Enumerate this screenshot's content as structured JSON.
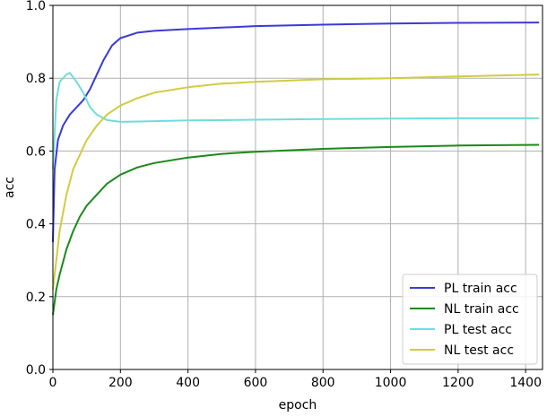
{
  "chart_data": {
    "type": "line",
    "xlabel": "epoch",
    "ylabel": "acc",
    "xlim": [
      0,
      1450
    ],
    "ylim": [
      0.0,
      1.0
    ],
    "xticks": [
      0,
      200,
      400,
      600,
      800,
      1000,
      1200,
      1400
    ],
    "xtick_labels": [
      "0",
      "200",
      "400",
      "600",
      "800",
      "1000",
      "1200",
      "1400"
    ],
    "yticks": [
      0.0,
      0.2,
      0.4,
      0.6,
      0.8,
      1.0
    ],
    "ytick_labels": [
      "0.0",
      "0.2",
      "0.4",
      "0.6",
      "0.8",
      "1.0"
    ],
    "grid": true,
    "legend_position": "lower-right",
    "series": [
      {
        "name": "PL train acc",
        "color": "#3a3ad8",
        "x": [
          0,
          5,
          15,
          30,
          50,
          70,
          90,
          110,
          130,
          150,
          175,
          200,
          250,
          300,
          400,
          600,
          800,
          1000,
          1200,
          1440
        ],
        "y": [
          0.35,
          0.55,
          0.63,
          0.67,
          0.7,
          0.72,
          0.74,
          0.77,
          0.81,
          0.85,
          0.89,
          0.91,
          0.925,
          0.93,
          0.935,
          0.943,
          0.947,
          0.95,
          0.952,
          0.953
        ]
      },
      {
        "name": "NL train acc",
        "color": "#1a8a1a",
        "x": [
          0,
          10,
          20,
          40,
          60,
          80,
          100,
          130,
          160,
          200,
          250,
          300,
          400,
          500,
          600,
          800,
          1000,
          1200,
          1440
        ],
        "y": [
          0.15,
          0.22,
          0.26,
          0.33,
          0.38,
          0.42,
          0.45,
          0.48,
          0.51,
          0.535,
          0.555,
          0.567,
          0.582,
          0.592,
          0.598,
          0.606,
          0.611,
          0.615,
          0.617
        ]
      },
      {
        "name": "PL test acc",
        "color": "#6fdcdc",
        "x": [
          0,
          10,
          20,
          40,
          50,
          70,
          90,
          110,
          130,
          160,
          200,
          300,
          400,
          600,
          800,
          1000,
          1200,
          1440
        ],
        "y": [
          0.55,
          0.74,
          0.79,
          0.81,
          0.815,
          0.79,
          0.76,
          0.72,
          0.7,
          0.685,
          0.68,
          0.682,
          0.684,
          0.686,
          0.688,
          0.689,
          0.69,
          0.69
        ]
      },
      {
        "name": "NL test acc",
        "color": "#d0cc40",
        "x": [
          0,
          10,
          20,
          40,
          60,
          80,
          100,
          130,
          160,
          200,
          250,
          300,
          400,
          500,
          600,
          800,
          1000,
          1200,
          1440
        ],
        "y": [
          0.22,
          0.3,
          0.38,
          0.48,
          0.55,
          0.59,
          0.63,
          0.67,
          0.7,
          0.725,
          0.745,
          0.76,
          0.775,
          0.785,
          0.79,
          0.797,
          0.8,
          0.805,
          0.81
        ]
      }
    ]
  }
}
